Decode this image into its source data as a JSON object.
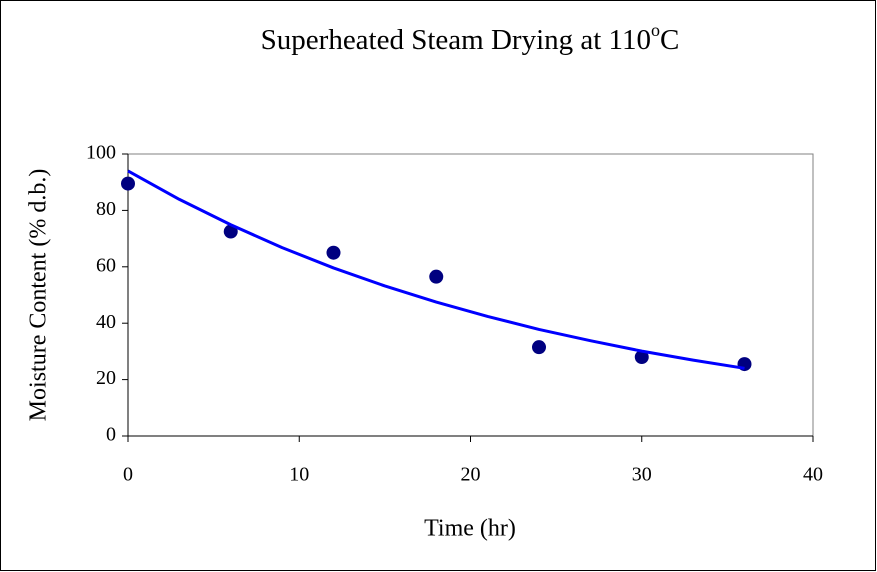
{
  "chart_data": {
    "type": "scatter",
    "title": [
      "Superheated Steam Drying at 110",
      "o",
      "C"
    ],
    "x_label": "Time (hr)",
    "y_label": "Moisture Content (% d.b.)",
    "series": [
      {
        "x": [
          0,
          6,
          12,
          18,
          24,
          30,
          36
        ],
        "values": [
          89.5,
          72.5,
          65,
          56.5,
          31.5,
          28,
          25.5
        ],
        "color": "#000080",
        "mode": "markers"
      },
      {
        "x": [
          0,
          3,
          6,
          9,
          12,
          15,
          18,
          21,
          24,
          27,
          30,
          33,
          36
        ],
        "values": [
          94,
          83.9,
          74.9,
          66.8,
          59.6,
          53.2,
          47.5,
          42.4,
          37.8,
          33.8,
          30.1,
          26.9,
          24.0
        ],
        "color": "#0000ff",
        "mode": "line"
      }
    ],
    "xlim": [
      0,
      40
    ],
    "xticks": [
      0,
      10,
      20,
      30,
      40
    ],
    "ylim": [
      0,
      100
    ],
    "yticks": [
      0,
      20,
      40,
      60,
      80,
      100
    ],
    "grid": false
  }
}
